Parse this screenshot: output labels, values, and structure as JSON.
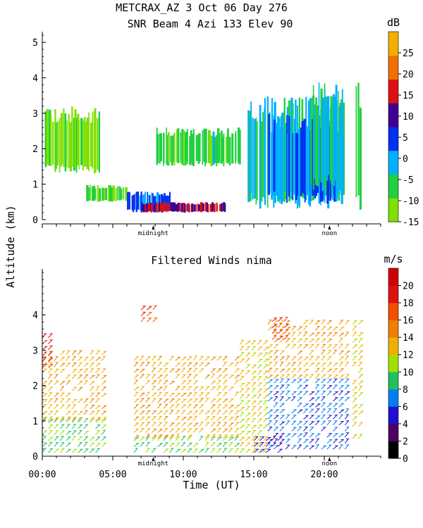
{
  "title_line1": "METCRAX_AZ    3 Oct 06 Day 276",
  "title_line2": "SNR Beam 4 Azi 133 Elev 90",
  "shared_ylabel": "Altitude (km)",
  "shared_xlabel": "Time (UT)",
  "colors": {
    "snr_scale": [
      "#80e000",
      "#20d040",
      "#00b0ff",
      "#0030f0",
      "#400090",
      "#e01010",
      "#f07000",
      "#f0b000"
    ],
    "wind_scale": [
      "#000000",
      "#500060",
      "#2010d0",
      "#0080f0",
      "#20c060",
      "#a0e000",
      "#f0b000",
      "#f08000",
      "#f05000",
      "#e01010",
      "#d00000"
    ]
  },
  "chart_data": [
    {
      "type": "heatmap",
      "name": "snr",
      "title": "SNR Beam 4 Azi 133 Elev 90",
      "ylabel": "Altitude (km)",
      "xlim": [
        0,
        24
      ],
      "ylim": [
        0,
        5.3
      ],
      "yticks": [
        "0",
        "1",
        "2",
        "3",
        "4",
        "5"
      ],
      "annotations": [
        "midnight",
        "noon"
      ],
      "annotation_x": [
        7.87,
        20.37
      ],
      "colorbar": {
        "unit": "dB",
        "ticks": [
          "-15",
          "-10",
          "-5",
          "0",
          "5",
          "10",
          "15",
          "20",
          "25"
        ],
        "range": [
          -15,
          30
        ]
      },
      "data_gaps_x": [
        [
          21.6,
          22.0
        ],
        [
          22.8,
          24
        ]
      ],
      "cells": [
        {
          "t0": 0.1,
          "t1": 4.0,
          "h0": 1.3,
          "h1": 3.2,
          "db": -12
        },
        {
          "t0": 3.0,
          "t1": 6.0,
          "h0": 0.5,
          "h1": 1.0,
          "db": -10
        },
        {
          "t0": 6.0,
          "t1": 9.0,
          "h0": 0.2,
          "h1": 0.8,
          "db": 0
        },
        {
          "t0": 7.0,
          "t1": 13.0,
          "h0": 0.2,
          "h1": 0.5,
          "db": 10
        },
        {
          "t0": 8.0,
          "t1": 14.0,
          "h0": 1.5,
          "h1": 2.6,
          "db": -8
        },
        {
          "t0": 14.5,
          "t1": 21.3,
          "h0": 0.3,
          "h1": 3.5,
          "db": -5
        },
        {
          "t0": 16.0,
          "t1": 21.3,
          "h0": 0.4,
          "h1": 3.0,
          "db": 0
        },
        {
          "t0": 19.0,
          "t1": 21.3,
          "h0": 0.8,
          "h1": 3.9,
          "db": -5
        },
        {
          "t0": 22.2,
          "t1": 22.6,
          "h0": 0.2,
          "h1": 3.9,
          "db": -8
        }
      ]
    },
    {
      "type": "barbs",
      "name": "winds",
      "title": "Filtered Winds nima",
      "xlabel": "Time (UT)",
      "ylabel": "Altitude (km)",
      "xlim": [
        0,
        24
      ],
      "ylim": [
        0,
        5.3
      ],
      "xticks": [
        "00:00",
        "05:00",
        "10:00",
        "15:00",
        "20:00"
      ],
      "yticks": [
        "0",
        "1",
        "2",
        "3",
        "4"
      ],
      "annotations": [
        "midnight",
        "noon"
      ],
      "annotation_x": [
        7.87,
        20.37
      ],
      "colorbar": {
        "unit": "m/s",
        "ticks": [
          "0",
          "2",
          "4",
          "6",
          "8",
          "10",
          "12",
          "14",
          "16",
          "18",
          "20"
        ],
        "range": [
          0,
          22
        ]
      },
      "wind_regions": [
        {
          "t0": 0.0,
          "t1": 4.5,
          "h0": 0.1,
          "h1": 1.0,
          "speed": 9
        },
        {
          "t0": 0.0,
          "t1": 4.5,
          "h0": 1.0,
          "h1": 3.0,
          "speed": 13
        },
        {
          "t0": 0.0,
          "t1": 0.6,
          "h0": 2.5,
          "h1": 3.5,
          "speed": 18
        },
        {
          "t0": 6.5,
          "t1": 14.0,
          "h0": 0.1,
          "h1": 0.5,
          "speed": 9
        },
        {
          "t0": 6.5,
          "t1": 14.0,
          "h0": 0.5,
          "h1": 2.8,
          "speed": 13
        },
        {
          "t0": 7.0,
          "t1": 8.2,
          "h0": 3.8,
          "h1": 4.2,
          "speed": 17
        },
        {
          "t0": 14.0,
          "t1": 16.0,
          "h0": 0.1,
          "h1": 3.2,
          "speed": 12
        },
        {
          "t0": 15.0,
          "t1": 17.0,
          "h0": 0.1,
          "h1": 0.5,
          "speed": 4
        },
        {
          "t0": 16.0,
          "t1": 21.5,
          "h0": 0.2,
          "h1": 2.2,
          "speed": 6
        },
        {
          "t0": 16.0,
          "t1": 21.5,
          "h0": 2.2,
          "h1": 3.8,
          "speed": 13
        },
        {
          "t0": 16.3,
          "t1": 17.5,
          "h0": 3.3,
          "h1": 3.9,
          "speed": 18
        },
        {
          "t0": 22.0,
          "t1": 22.6,
          "h0": 0.5,
          "h1": 3.8,
          "speed": 12
        }
      ]
    }
  ]
}
